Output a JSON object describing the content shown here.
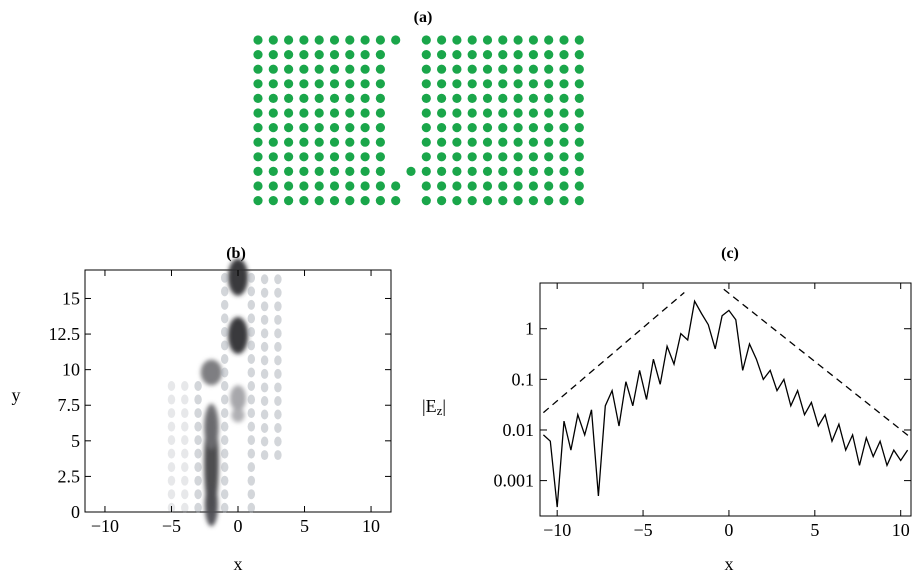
{
  "figure": {
    "panel_a": {
      "label": "(a)",
      "dot_color": "#1aa64a",
      "columns": 22,
      "rows": 12,
      "gap_column_index": 10,
      "wall_column_index": 9,
      "wall_top_row": 1,
      "wall_bottom_row": 9,
      "bottom_row_start_column": 10
    },
    "panel_b": {
      "label": "(b)",
      "xlabel": "x",
      "ylabel": "y",
      "xticks": [
        "−10",
        "−5",
        "0",
        "5",
        "10"
      ],
      "yticks": [
        "0",
        "2.5",
        "5",
        "7.5",
        "10",
        "12.5",
        "15"
      ]
    },
    "panel_c": {
      "label": "(c)",
      "xlabel": "x",
      "ylabel": "|E",
      "ylabel_sub": "z",
      "ylabel_end": "|",
      "xticks": [
        "−10",
        "−5",
        "0",
        "5",
        "10"
      ],
      "yticks": [
        "0.001",
        "0.01",
        "0.1",
        "1"
      ]
    }
  },
  "chart_data": [
    {
      "type": "heatmap",
      "title": "(b)",
      "xlabel": "x",
      "ylabel": "y",
      "xlim": [
        -11.5,
        11.5
      ],
      "ylim": [
        0,
        17
      ],
      "xticks": [
        -10,
        -5,
        0,
        5,
        10
      ],
      "yticks": [
        0,
        2.5,
        5,
        7.5,
        10,
        12.5,
        15
      ],
      "colorscale": "white-to-black contour",
      "blobs": [
        {
          "x": -2,
          "y": 3.5,
          "w": 0.55,
          "h": 3.6,
          "intensity": 0.8
        },
        {
          "x": -2,
          "y": 0.5,
          "w": 0.5,
          "h": 1.5,
          "intensity": 0.75
        },
        {
          "x": -2,
          "y": 6.0,
          "w": 0.55,
          "h": 1.6,
          "intensity": 0.6
        },
        {
          "x": -2,
          "y": 9.8,
          "w": 0.8,
          "h": 0.9,
          "intensity": 0.55
        },
        {
          "x": 0,
          "y": 12.4,
          "w": 0.75,
          "h": 1.3,
          "intensity": 0.9
        },
        {
          "x": 0,
          "y": 16.5,
          "w": 0.75,
          "h": 1.3,
          "intensity": 0.9
        },
        {
          "x": 0,
          "y": 8.0,
          "w": 0.6,
          "h": 0.9,
          "intensity": 0.35
        },
        {
          "x": 0,
          "y": 6.8,
          "w": 0.5,
          "h": 0.5,
          "intensity": 0.3
        }
      ]
    },
    {
      "type": "line",
      "title": "(c)",
      "xlabel": "x",
      "ylabel": "|Ez|",
      "yscale": "log",
      "xlim": [
        -11,
        10.6
      ],
      "ylim": [
        0.0002,
        8
      ],
      "xticks": [
        -10,
        -5,
        0,
        5,
        10
      ],
      "yticks": [
        0.001,
        0.01,
        0.1,
        1
      ],
      "series": [
        {
          "style": "solid",
          "x": [
            -10.8,
            -10.4,
            -10.0,
            -9.6,
            -9.2,
            -8.8,
            -8.4,
            -8.0,
            -7.6,
            -7.2,
            -6.8,
            -6.4,
            -6.0,
            -5.6,
            -5.2,
            -4.8,
            -4.4,
            -4.0,
            -3.6,
            -3.2,
            -2.8,
            -2.4,
            -2.0,
            -1.6,
            -1.2,
            -0.8,
            -0.4,
            0.0,
            0.4,
            0.8,
            1.2,
            1.6,
            2.0,
            2.4,
            2.8,
            3.2,
            3.6,
            4.0,
            4.4,
            4.8,
            5.2,
            5.6,
            6.0,
            6.4,
            6.8,
            7.2,
            7.6,
            8.0,
            8.4,
            8.8,
            9.2,
            9.6,
            10.0,
            10.4
          ],
          "y": [
            0.008,
            0.006,
            0.0003,
            0.015,
            0.004,
            0.02,
            0.008,
            0.025,
            0.0005,
            0.03,
            0.06,
            0.012,
            0.09,
            0.03,
            0.15,
            0.04,
            0.25,
            0.08,
            0.45,
            0.2,
            0.8,
            0.6,
            3.5,
            2.0,
            1.2,
            0.4,
            1.8,
            2.3,
            1.5,
            0.15,
            0.5,
            0.25,
            0.1,
            0.15,
            0.06,
            0.1,
            0.03,
            0.06,
            0.02,
            0.035,
            0.012,
            0.02,
            0.006,
            0.013,
            0.004,
            0.008,
            0.002,
            0.007,
            0.003,
            0.006,
            0.002,
            0.004,
            0.0025,
            0.004
          ]
        },
        {
          "style": "dashed",
          "x": [
            -10.8,
            -2.6
          ],
          "y": [
            0.022,
            5.2
          ]
        },
        {
          "style": "dashed",
          "x": [
            -0.3,
            10.6
          ],
          "y": [
            6.0,
            0.007
          ]
        }
      ]
    }
  ]
}
